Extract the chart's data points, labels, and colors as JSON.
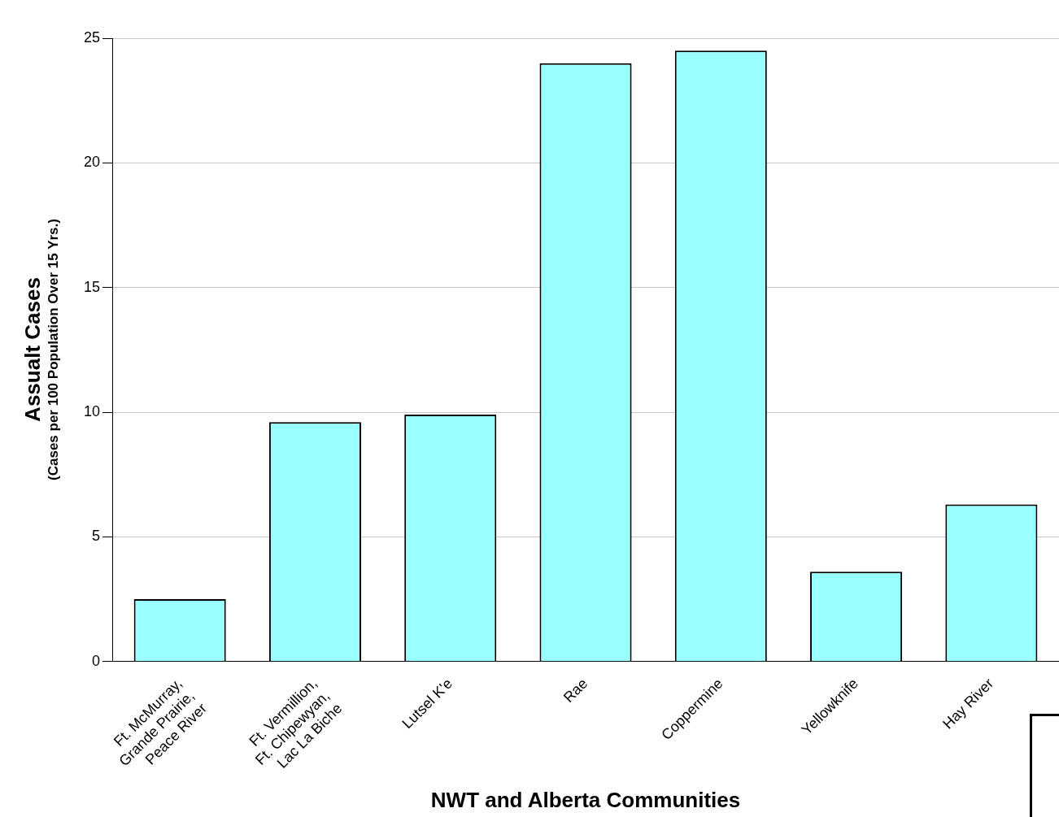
{
  "chart_data": {
    "type": "bar",
    "xlabel": "NWT and Alberta Communities",
    "ylabel": "Assualt Cases\n(Cases per 100 Population Over 15 Yrs.)",
    "categories": [
      "Ft. McMurray,\nGrande Prairie,\nPeace River",
      "Ft. Vermillion,\nFt. Chipewyan,\nLac La Biche",
      "Lutsel K'e",
      "Rae",
      "Coppermine",
      "Yellowknife",
      "Hay River"
    ],
    "values": [
      2.5,
      9.6,
      9.9,
      24.0,
      24.5,
      3.6,
      6.3
    ],
    "color": "#99ffff",
    "ylim": [
      0,
      25
    ],
    "yticks": [
      0,
      5,
      10,
      15,
      20,
      25
    ],
    "grid": "y",
    "legend": false
  }
}
